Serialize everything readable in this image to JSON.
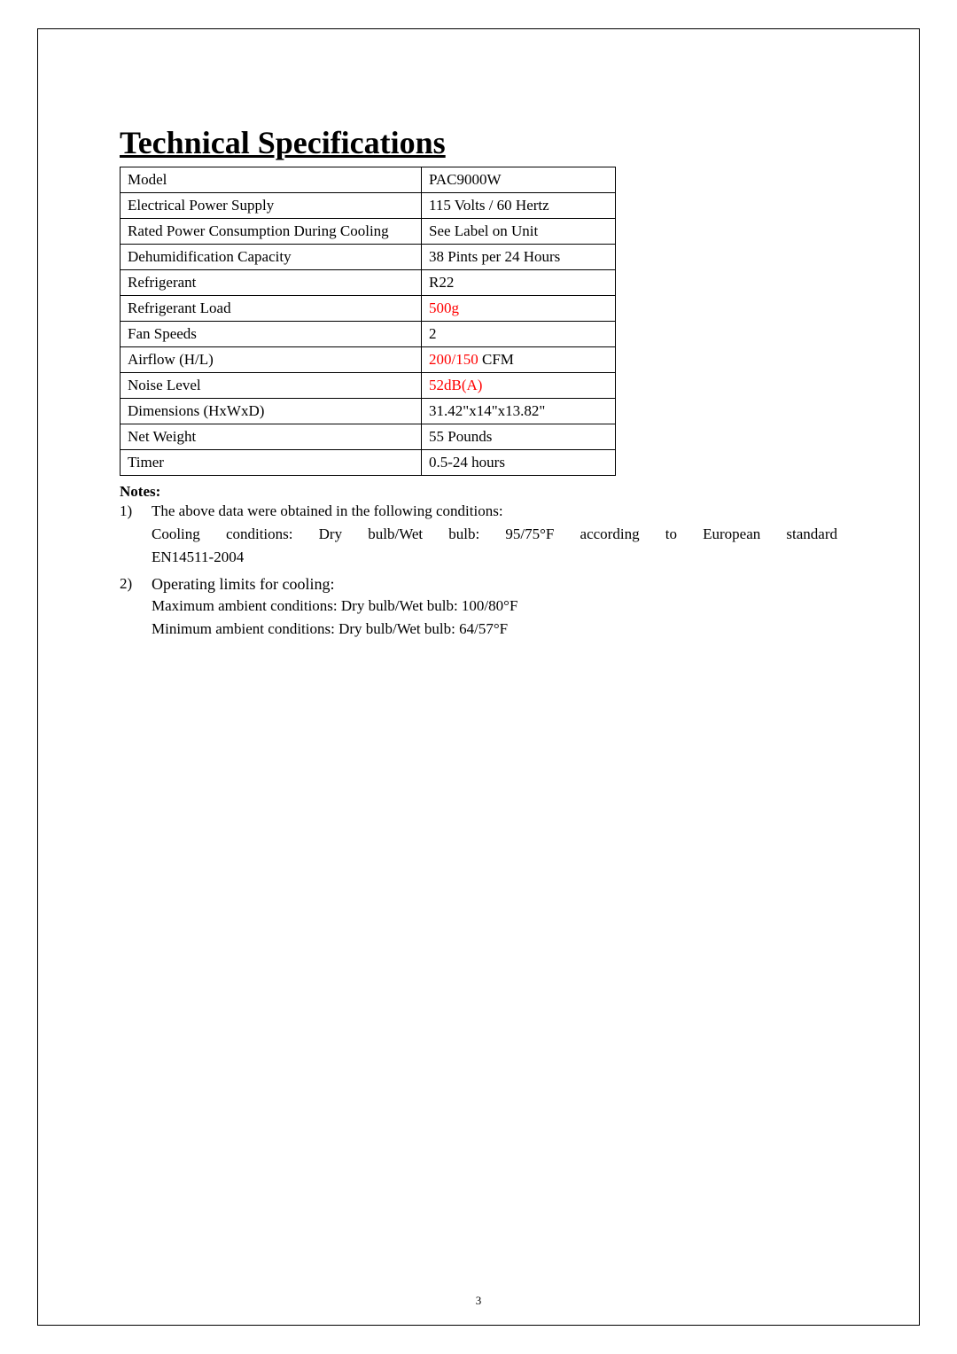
{
  "title": "Technical Specifications",
  "table": {
    "columns": [
      "spec",
      "value"
    ],
    "rows": [
      {
        "spec": "Model",
        "value": "PAC9000W",
        "valueRed": false
      },
      {
        "spec": "Electrical Power Supply",
        "value": "115 Volts / 60 Hertz",
        "valueRed": false
      },
      {
        "spec": "Rated Power Consumption During Cooling",
        "value": "See Label on Unit",
        "valueRed": false
      },
      {
        "spec": "Dehumidification Capacity",
        "value": "38 Pints per 24 Hours",
        "valueRed": false
      },
      {
        "spec": "Refrigerant",
        "value": "R22",
        "valueRed": false
      },
      {
        "spec": "Refrigerant Load",
        "value": "500g",
        "valueRed": true
      },
      {
        "spec": "Fan Speeds",
        "value": "2",
        "valueRed": false
      },
      {
        "spec": "Airflow (H/L)",
        "valuePrefix": "200/150",
        "valueSuffix": " CFM",
        "valueRed": true
      },
      {
        "spec": "Noise Level",
        "value": "52dB(A)",
        "valueRed": true
      },
      {
        "spec": "Dimensions (HxWxD)",
        "value": "31.42\"x14\"x13.82\"",
        "valueRed": false
      },
      {
        "spec": "Net Weight",
        "value": "55 Pounds",
        "valueRed": false
      },
      {
        "spec": "Timer",
        "value": "0.5-24 hours",
        "valueRed": false
      }
    ],
    "border_color": "#000000",
    "font_size": 17
  },
  "notes": {
    "heading": "Notes:",
    "items": [
      {
        "number": "1)",
        "line1": "The above data were obtained in the following conditions:",
        "line2": "Cooling conditions: Dry bulb/Wet bulb: 95/75°F according to European standard",
        "line3": "EN14511-2004"
      },
      {
        "number": "2)",
        "subheading": "Operating limits for cooling:",
        "line1": "Maximum ambient conditions: Dry bulb/Wet bulb: 100/80°F",
        "line2": "Minimum ambient conditions: Dry bulb/Wet bulb: 64/57°F"
      }
    ]
  },
  "page_number": "3",
  "colors": {
    "red": "#ff0000",
    "black": "#000000",
    "background": "#ffffff"
  }
}
